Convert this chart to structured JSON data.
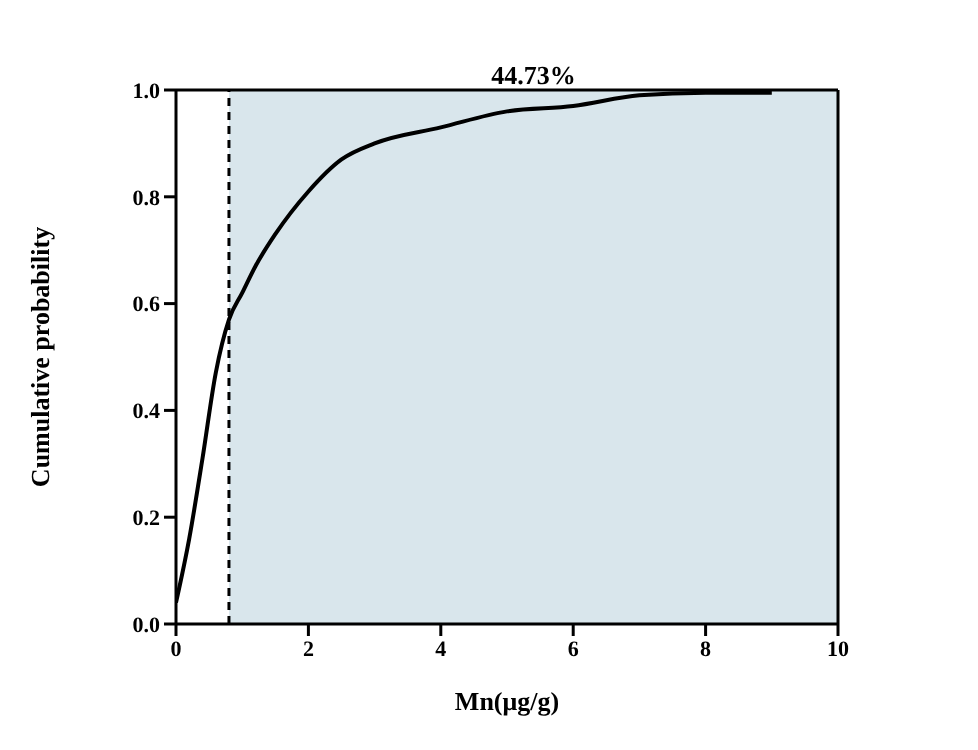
{
  "chart_data": {
    "type": "line",
    "xlabel": "Mn(μg/g)",
    "ylabel": "Cumulative probability",
    "x": [
      0,
      0.2,
      0.4,
      0.6,
      0.8,
      1,
      1.2,
      1.5,
      2,
      2.5,
      3,
      4,
      5,
      6,
      7,
      8,
      9
    ],
    "series": [
      {
        "color": "#000000",
        "values": [
          0.04,
          0.16,
          0.31,
          0.47,
          0.57,
          0.62,
          0.67,
          0.73,
          0.81,
          0.87,
          0.9,
          0.93,
          0.96,
          0.97,
          0.99,
          0.995,
          0.995
        ]
      }
    ],
    "xlim": [
      0,
      10
    ],
    "xticks": [
      0,
      2,
      4,
      6,
      8,
      10
    ],
    "ylim": [
      0,
      1
    ],
    "yticks": [
      {
        "value": 0,
        "label": "0.0"
      },
      {
        "value": 0.2,
        "label": "0.2"
      },
      {
        "value": 0.4,
        "label": "0.4"
      },
      {
        "value": 0.6,
        "label": "0.6"
      },
      {
        "value": 0.8,
        "label": "0.8"
      },
      {
        "value": 1,
        "label": "1.0"
      }
    ],
    "bands": [
      {
        "axis": "x",
        "from": 0.8,
        "to": 10,
        "label": "44.73%",
        "color": "#d9e6ec"
      }
    ],
    "ref_lines": [
      {
        "axis": "x",
        "value": 0.8,
        "color": "#000000",
        "line_style": "dashed"
      }
    ],
    "marker": "none",
    "line_style": "solid"
  }
}
